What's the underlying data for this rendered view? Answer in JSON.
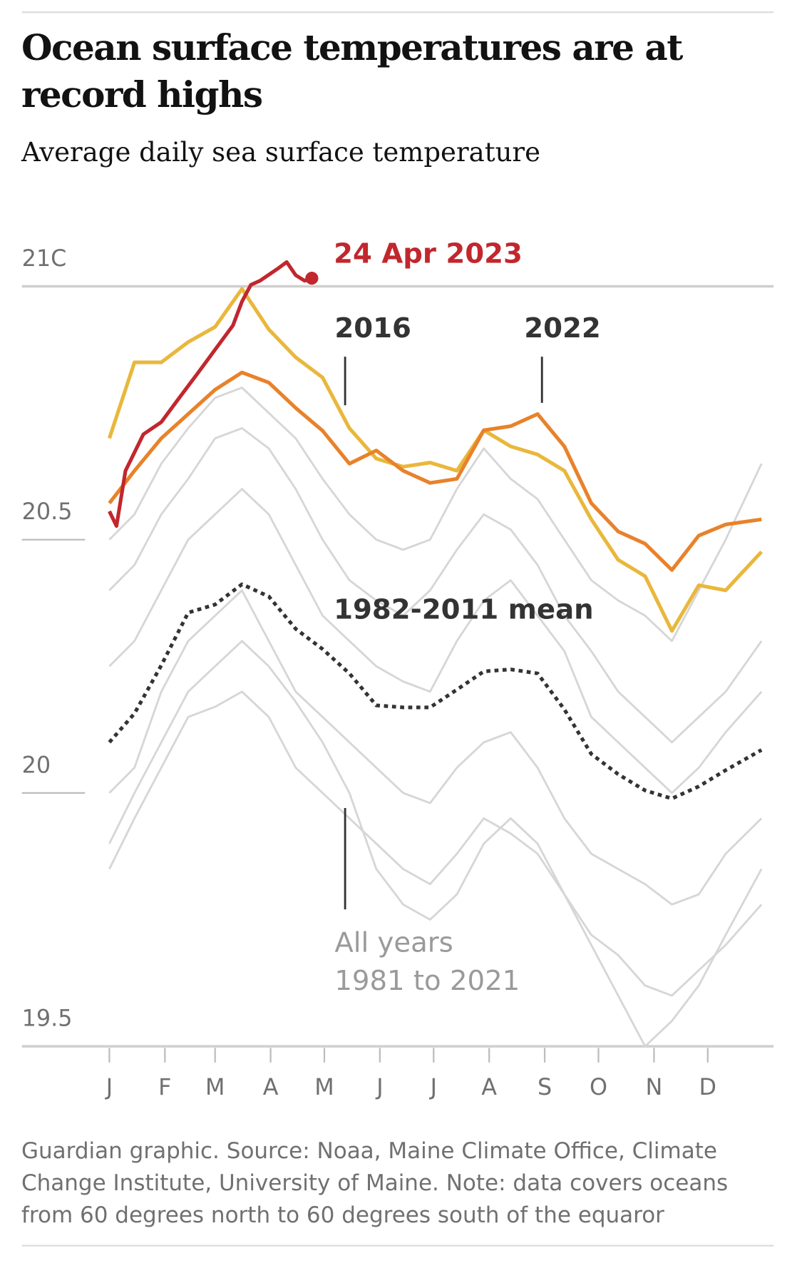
{
  "chart_data": {
    "type": "line",
    "title": "Ocean surface temperatures are at record highs",
    "subtitle": "Average daily sea surface temperature",
    "source": "Guardian graphic. Source: Noaa, Maine Climate Office, Climate Change Institute, University of Maine. Note: data covers oceans from 60 degrees north to 60 degrees south of the equaror",
    "xlim": [
      1,
      365
    ],
    "xticks": [
      {
        "value": 1,
        "label": "J"
      },
      {
        "value": 32,
        "label": "F"
      },
      {
        "value": 60,
        "label": "M"
      },
      {
        "value": 91,
        "label": "A"
      },
      {
        "value": 121,
        "label": "M"
      },
      {
        "value": 152,
        "label": "J"
      },
      {
        "value": 182,
        "label": "J"
      },
      {
        "value": 213,
        "label": "A"
      },
      {
        "value": 244,
        "label": "S"
      },
      {
        "value": 274,
        "label": "O"
      },
      {
        "value": 305,
        "label": "N"
      },
      {
        "value": 335,
        "label": "D"
      }
    ],
    "ylim": [
      19.5,
      21.05
    ],
    "yticks": [
      19.5,
      20,
      20.5,
      {
        "value": 21,
        "label": "21C"
      }
    ],
    "x": [
      1,
      15,
      30,
      45,
      60,
      75,
      90,
      105,
      120,
      135,
      150,
      165,
      180,
      195,
      210,
      225,
      240,
      255,
      270,
      285,
      300,
      315,
      330,
      345,
      365
    ],
    "background_series": [
      {
        "color": "#d6d6d6",
        "values": [
          19.85,
          19.95,
          20.05,
          20.15,
          20.17,
          20.2,
          20.15,
          20.05,
          20.0,
          19.95,
          19.9,
          19.85,
          19.82,
          19.88,
          19.95,
          19.92,
          19.88,
          19.8,
          19.72,
          19.68,
          19.62,
          19.6,
          19.65,
          19.7,
          19.78
        ]
      },
      {
        "color": "#d6d6d6",
        "values": [
          20.0,
          20.05,
          20.2,
          20.3,
          20.35,
          20.4,
          20.3,
          20.2,
          20.15,
          20.1,
          20.05,
          20.0,
          19.98,
          20.05,
          20.1,
          20.12,
          20.05,
          19.95,
          19.88,
          19.85,
          19.82,
          19.78,
          19.8,
          19.88,
          19.95
        ]
      },
      {
        "color": "#d6d6d6",
        "values": [
          20.25,
          20.3,
          20.4,
          20.5,
          20.55,
          20.6,
          20.55,
          20.45,
          20.35,
          20.3,
          20.25,
          20.22,
          20.2,
          20.3,
          20.38,
          20.42,
          20.35,
          20.28,
          20.15,
          20.1,
          20.05,
          20.0,
          20.05,
          20.12,
          20.2
        ]
      },
      {
        "color": "#d6d6d6",
        "values": [
          20.4,
          20.45,
          20.55,
          20.62,
          20.7,
          20.72,
          20.68,
          20.6,
          20.5,
          20.42,
          20.38,
          20.35,
          20.4,
          20.48,
          20.55,
          20.52,
          20.45,
          20.35,
          20.28,
          20.2,
          20.15,
          20.1,
          20.15,
          20.2,
          20.3
        ]
      },
      {
        "color": "#d6d6d6",
        "values": [
          20.5,
          20.55,
          20.65,
          20.72,
          20.78,
          20.8,
          20.75,
          20.7,
          20.62,
          20.55,
          20.5,
          20.48,
          20.5,
          20.6,
          20.68,
          20.62,
          20.58,
          20.5,
          20.42,
          20.38,
          20.35,
          20.3,
          20.4,
          20.5,
          20.65
        ]
      },
      {
        "color": "#d6d6d6",
        "values": [
          19.9,
          20.0,
          20.1,
          20.2,
          20.25,
          20.3,
          20.25,
          20.18,
          20.1,
          20.0,
          19.85,
          19.78,
          19.75,
          19.8,
          19.9,
          19.95,
          19.9,
          19.8,
          19.7,
          19.6,
          19.5,
          19.55,
          19.62,
          19.72,
          19.85
        ]
      }
    ],
    "series": [
      {
        "name": "1982-2011 mean",
        "color": "#333333",
        "dashed": true,
        "values": [
          20.1,
          20.157,
          20.252,
          20.356,
          20.372,
          20.412,
          20.388,
          20.324,
          20.284,
          20.236,
          20.173,
          20.169,
          20.169,
          20.204,
          20.24,
          20.244,
          20.236,
          20.165,
          20.077,
          20.037,
          20.005,
          19.989,
          20.013,
          20.045,
          20.085
        ]
      },
      {
        "name": "2016",
        "color": "#e9b73c",
        "values": [
          20.7,
          20.85,
          20.85,
          20.89,
          20.92,
          20.995,
          20.915,
          20.86,
          20.82,
          20.72,
          20.66,
          20.644,
          20.652,
          20.636,
          20.716,
          20.684,
          20.668,
          20.636,
          20.54,
          20.46,
          20.428,
          20.32,
          20.41,
          20.4,
          20.476
        ]
      },
      {
        "name": "2022",
        "color": "#e8822b",
        "values": [
          20.572,
          20.636,
          20.7,
          20.748,
          20.796,
          20.83,
          20.81,
          20.76,
          20.715,
          20.65,
          20.676,
          20.636,
          20.612,
          20.62,
          20.716,
          20.724,
          20.748,
          20.684,
          20.572,
          20.516,
          20.492,
          20.44,
          20.508,
          20.53,
          20.54
        ]
      },
      {
        "name": "24 Apr 2023",
        "color": "#c1272d",
        "x": [
          1,
          5,
          10,
          20,
          30,
          40,
          50,
          60,
          70,
          75,
          80,
          85,
          95,
          100,
          105,
          110,
          114
        ],
        "values": [
          20.556,
          20.527,
          20.636,
          20.708,
          20.732,
          20.78,
          20.827,
          20.875,
          20.923,
          20.97,
          21.003,
          21.011,
          21.035,
          21.048,
          21.022,
          21.011,
          21.016
        ]
      }
    ],
    "annotations": [
      "All years",
      "1981 to 2021"
    ]
  }
}
